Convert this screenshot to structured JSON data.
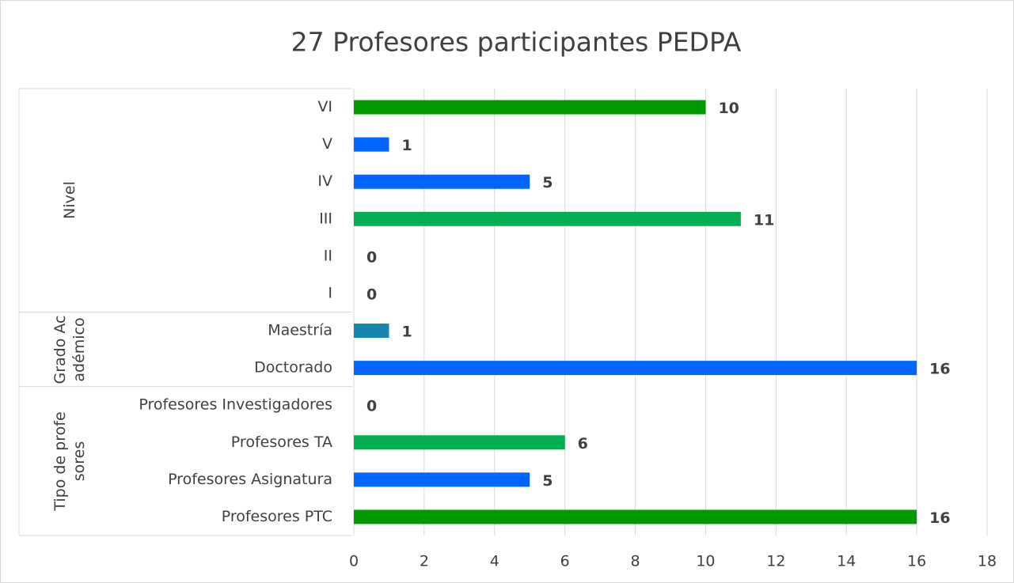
{
  "chart_data": {
    "type": "bar",
    "orientation": "horizontal",
    "title": "27 Profesores participantes PEDPA",
    "groups": [
      {
        "name": "Nivel",
        "categories": [
          "VI",
          "V",
          "IV",
          "III",
          "II",
          "I"
        ],
        "values": [
          10,
          1,
          5,
          11,
          0,
          0
        ],
        "colors": [
          "#009900",
          "#0066ff",
          "#0066ff",
          "#00b050",
          "#00b050",
          "#00b050"
        ]
      },
      {
        "name": "Grado Académico",
        "categories": [
          "Maestría",
          "Doctorado"
        ],
        "values": [
          1,
          16
        ],
        "colors": [
          "#1486b0",
          "#0066ff"
        ]
      },
      {
        "name": "Tipo de profesores",
        "categories": [
          "Profesores Investigadores",
          "Profesores TA",
          "Profesores Asignatura",
          "Profesores PTC"
        ],
        "values": [
          0,
          6,
          5,
          16
        ],
        "colors": [
          "#00b050",
          "#00b050",
          "#0066ff",
          "#009900"
        ]
      }
    ],
    "xlim": [
      0,
      18
    ],
    "xticks": [
      0,
      2,
      4,
      6,
      8,
      10,
      12,
      14,
      16,
      18
    ],
    "grid": true
  }
}
